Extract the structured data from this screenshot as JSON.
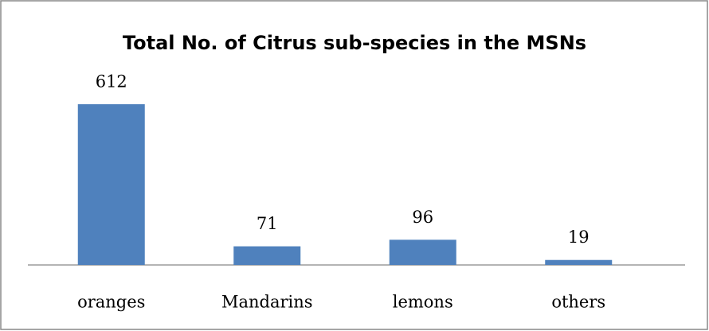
{
  "chart_data": {
    "type": "bar",
    "title": "Total No. of Citrus sub-species in the MSNs",
    "categories": [
      "oranges",
      "Mandarins",
      "lemons",
      "others"
    ],
    "values": [
      612,
      71,
      96,
      19
    ],
    "color": "#4f81bd"
  }
}
